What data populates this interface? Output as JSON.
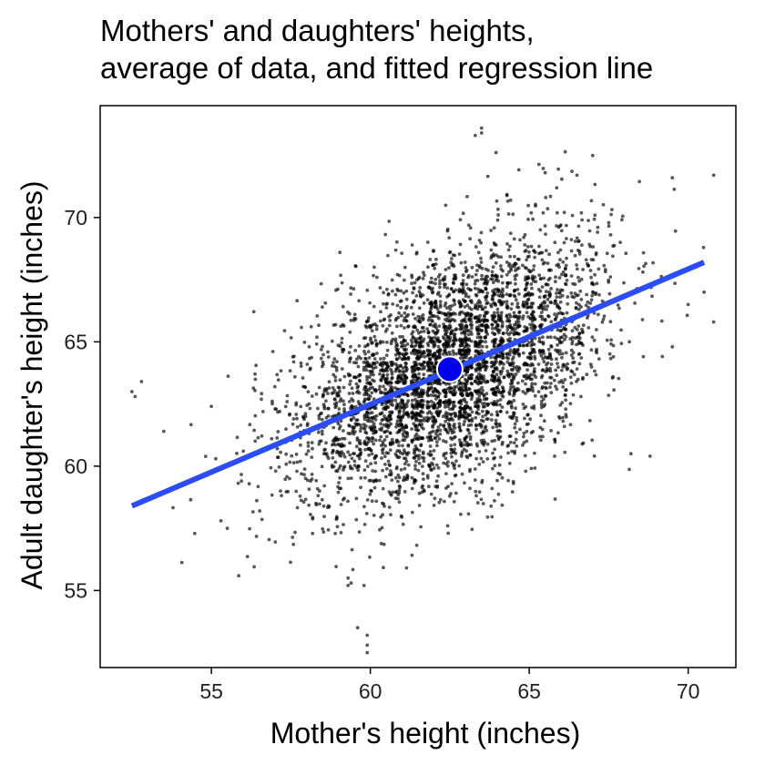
{
  "chart_data": {
    "type": "scatter",
    "title_lines": [
      "Mothers' and daughters' heights,",
      "average of data, and fitted regression line"
    ],
    "xlabel": "Mother's height (inches)",
    "ylabel": "Adult daughter's height (inches)",
    "xlim": [
      51.5,
      71.5
    ],
    "ylim": [
      51.9,
      74.5
    ],
    "x_ticks": [
      55,
      60,
      65,
      70
    ],
    "y_ticks": [
      55,
      60,
      65,
      70
    ],
    "grid": false,
    "point_color": "#000000",
    "point_opacity": 0.65,
    "regression_line": {
      "x": [
        52.5,
        70.5
      ],
      "y": [
        58.4,
        68.2
      ],
      "color": "#2b4cf7"
    },
    "average_point": {
      "x": 62.5,
      "y": 63.9,
      "color": "#0000ee"
    },
    "points_note": "Approximately 5,000 jittered points concentrated around integer mother heights 58-67 inches with daughter heights about 57-70 inches; sparse outliers down to 52.5 and up to 73.5 inches."
  }
}
